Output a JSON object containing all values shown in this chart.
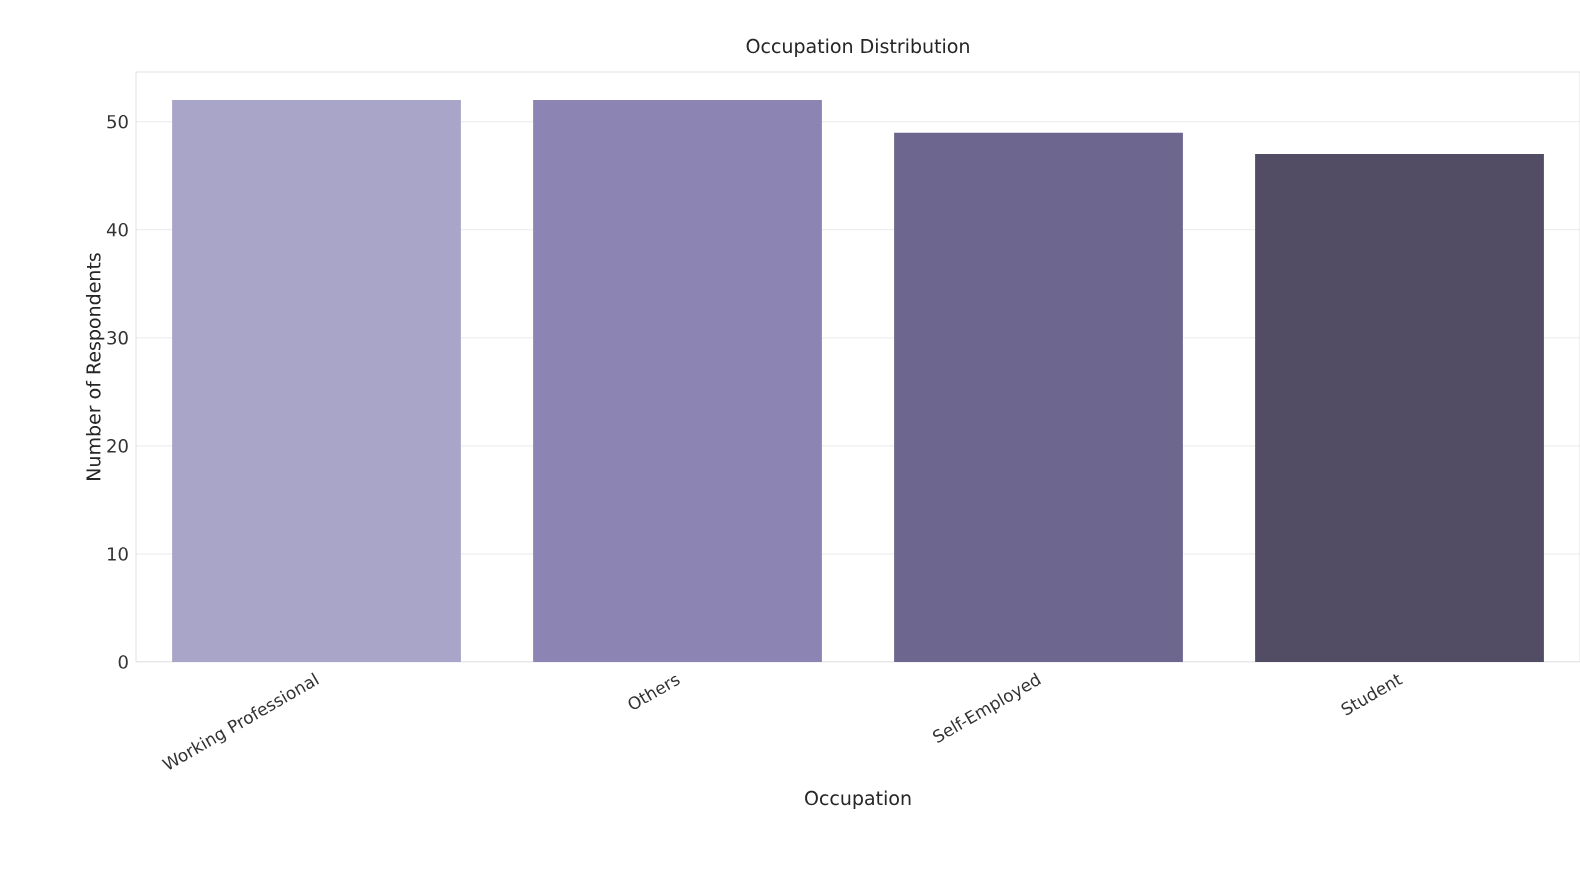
{
  "chart_data": {
    "type": "bar",
    "title": "Occupation Distribution",
    "xlabel": "Occupation",
    "ylabel": "Number of Respondents",
    "categories": [
      "Working Professional",
      "Others",
      "Self-Employed",
      "Student"
    ],
    "values": [
      52,
      52,
      49,
      47
    ],
    "colors": [
      "#a9a5c8",
      "#8c84b2",
      "#6d668e",
      "#524d65"
    ],
    "ylim": [
      0,
      54.6
    ],
    "yticks": [
      0,
      10,
      20,
      30,
      40,
      50
    ],
    "grid": "y"
  }
}
